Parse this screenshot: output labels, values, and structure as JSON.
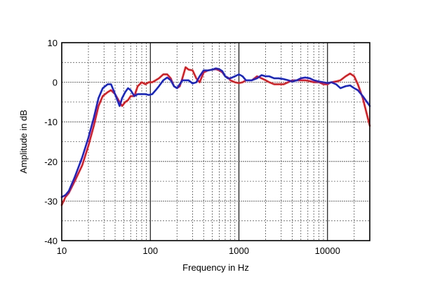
{
  "chart_data": {
    "type": "line",
    "xlabel": "Frequency in Hz",
    "ylabel": "Amplitude in dB",
    "xscale": "log",
    "xlim": [
      10,
      30000
    ],
    "ylim": [
      -40,
      10
    ],
    "grid": true,
    "legend": "none",
    "xticks": [
      {
        "value": 10,
        "label": "10"
      },
      {
        "value": 100,
        "label": "100"
      },
      {
        "value": 1000,
        "label": "1000"
      },
      {
        "value": 10000,
        "label": "10000"
      }
    ],
    "yticks": [
      {
        "value": 10,
        "label": "10"
      },
      {
        "value": 0,
        "label": "0"
      },
      {
        "value": -10,
        "label": "-10"
      },
      {
        "value": -20,
        "label": "-20"
      },
      {
        "value": -30,
        "label": "-30"
      },
      {
        "value": -40,
        "label": "-40"
      }
    ],
    "series": [
      {
        "color": "#e8161b",
        "x": [
          10,
          11,
          12,
          14,
          17,
          20,
          23,
          26,
          29,
          33,
          36,
          40,
          45,
          48,
          52,
          56,
          60,
          66,
          72,
          80,
          88,
          96,
          105,
          115,
          125,
          140,
          155,
          170,
          185,
          200,
          215,
          230,
          250,
          270,
          300,
          330,
          360,
          400,
          450,
          500,
          550,
          600,
          650,
          700,
          750,
          800,
          900,
          1000,
          1100,
          1200,
          1400,
          1600,
          1800,
          2000,
          2200,
          2500,
          2800,
          3200,
          3600,
          4000,
          4500,
          5000,
          5600,
          6300,
          7000,
          8000,
          9000,
          10000,
          11000,
          12500,
          14000,
          16000,
          18000,
          20000,
          22000,
          25000,
          30000
        ],
        "y": [
          -31,
          -29,
          -28,
          -25,
          -21,
          -16,
          -11,
          -6,
          -3.5,
          -2.5,
          -2,
          -3,
          -5,
          -6,
          -5,
          -4.5,
          -3.5,
          -3.5,
          -1,
          0,
          -0.5,
          0,
          0,
          0.5,
          1,
          2,
          2,
          1,
          -1,
          -1.5,
          -1,
          1,
          3.8,
          3.2,
          3,
          1,
          0,
          2.5,
          3,
          3.2,
          3.3,
          3,
          2.5,
          1.5,
          1.2,
          0.5,
          0,
          -0.2,
          0,
          0.5,
          0.5,
          1.5,
          1,
          0.5,
          0,
          -0.5,
          -0.5,
          -0.5,
          0,
          0.5,
          0.5,
          0.5,
          0.5,
          0.3,
          0,
          0,
          -0.5,
          -0.5,
          0,
          0.2,
          0.5,
          1.5,
          2.2,
          1.5,
          -0.5,
          -4,
          -11
        ]
      },
      {
        "color": "#1525d6",
        "x": [
          10,
          11,
          12,
          14,
          17,
          20,
          23,
          26,
          29,
          33,
          36,
          40,
          45,
          48,
          52,
          56,
          60,
          66,
          72,
          80,
          88,
          96,
          105,
          115,
          125,
          140,
          155,
          170,
          185,
          200,
          215,
          230,
          250,
          270,
          300,
          330,
          360,
          400,
          450,
          500,
          550,
          600,
          650,
          700,
          750,
          800,
          900,
          1000,
          1100,
          1200,
          1400,
          1600,
          1800,
          2000,
          2200,
          2500,
          2800,
          3200,
          3600,
          4000,
          4500,
          5000,
          5600,
          6300,
          7000,
          8000,
          9000,
          10000,
          11000,
          12500,
          14000,
          16000,
          18000,
          20000,
          22000,
          25000,
          30000
        ],
        "y": [
          -29,
          -28.5,
          -27.5,
          -24,
          -19,
          -14,
          -9,
          -4,
          -1.5,
          -0.5,
          -0.5,
          -3,
          -6,
          -4,
          -2.5,
          -1.5,
          -2,
          -3.5,
          -3,
          -3,
          -3,
          -3.2,
          -3,
          -2,
          -1,
          0.5,
          1.2,
          0.5,
          -1,
          -1.5,
          -0.5,
          0.5,
          0.5,
          0.5,
          -0.3,
          0,
          1.5,
          3,
          3,
          3.2,
          3.5,
          3.3,
          2.8,
          1.5,
          1,
          1,
          1.5,
          2,
          1.5,
          0.5,
          0.5,
          1,
          1.8,
          1.5,
          1.5,
          1,
          1,
          0.8,
          0.5,
          0.2,
          0.5,
          1,
          1.2,
          1,
          0.5,
          0.2,
          0,
          -0.2,
          0,
          -0.5,
          -1.5,
          -1,
          -0.8,
          -1.5,
          -2,
          -3.5,
          -6
        ]
      }
    ]
  }
}
